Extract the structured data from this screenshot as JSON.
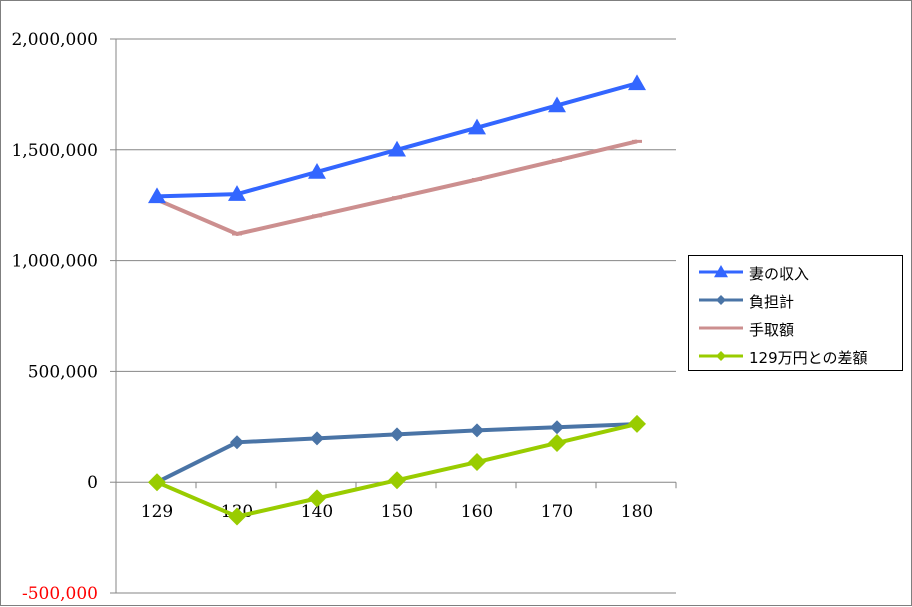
{
  "chart_data": {
    "type": "line",
    "categories": [
      "129",
      "130",
      "140",
      "150",
      "160",
      "170",
      "180"
    ],
    "ylim": [
      -500000,
      2000000
    ],
    "yticks": [
      {
        "value": 2000000,
        "label": "2,000,000"
      },
      {
        "value": 1500000,
        "label": "1,500,000"
      },
      {
        "value": 1000000,
        "label": "1,000,000"
      },
      {
        "value": 500000,
        "label": "500,000"
      },
      {
        "value": 0,
        "label": "0"
      },
      {
        "value": -500000,
        "label": "-500,000"
      }
    ],
    "grid": true,
    "legend_position": "right",
    "series": [
      {
        "name": "妻の収入",
        "color": "#3366ff",
        "marker": "triangle",
        "values": [
          1290000,
          1300000,
          1400000,
          1500000,
          1600000,
          1700000,
          1800000
        ]
      },
      {
        "name": "負担計",
        "color": "#4a74a6",
        "marker": "diamond",
        "values": [
          0,
          180000,
          198000,
          216000,
          234000,
          248000,
          262000
        ]
      },
      {
        "name": "手取額",
        "color": "#cc8f8f",
        "marker": "dash",
        "values": [
          1275000,
          1120000,
          1202000,
          1284000,
          1366000,
          1452000,
          1538000
        ]
      },
      {
        "name": "129万円との差額",
        "color": "#99cc00",
        "marker": "diamond",
        "values": [
          0,
          -155000,
          -73000,
          9000,
          91000,
          177000,
          263000
        ]
      }
    ]
  }
}
